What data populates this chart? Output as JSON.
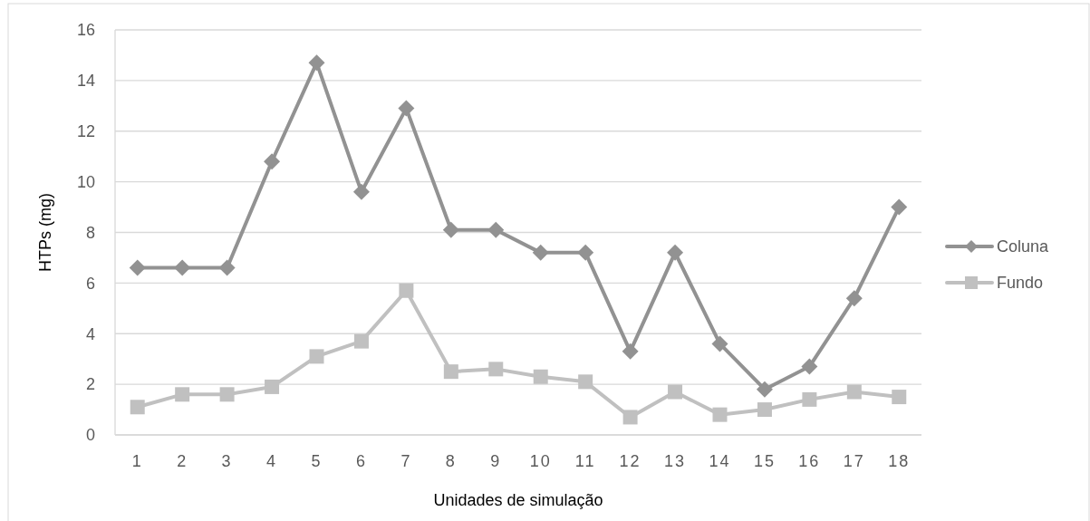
{
  "chart_data": {
    "type": "line",
    "xlabel": "Unidades de simulação",
    "ylabel": "HTPs (mg)",
    "categories": [
      "1",
      "2",
      "3",
      "4",
      "5",
      "6",
      "7",
      "8",
      "9",
      "10",
      "11",
      "12",
      "13",
      "14",
      "15",
      "16",
      "17",
      "18"
    ],
    "series": [
      {
        "name": "Coluna",
        "color": "#929292",
        "marker": "diamond",
        "values": [
          6.6,
          6.6,
          6.6,
          10.8,
          14.7,
          9.6,
          12.9,
          8.1,
          8.1,
          7.2,
          7.2,
          3.3,
          7.2,
          3.6,
          1.8,
          2.7,
          5.4,
          9.0
        ]
      },
      {
        "name": "Fundo",
        "color": "#c0c0c0",
        "marker": "square",
        "values": [
          1.1,
          1.6,
          1.6,
          1.9,
          3.1,
          3.7,
          5.7,
          2.5,
          2.6,
          2.3,
          2.1,
          0.7,
          1.7,
          0.8,
          1.0,
          1.4,
          1.7,
          1.5
        ]
      }
    ],
    "ylim": [
      0,
      16
    ],
    "yticks": [
      0,
      2,
      4,
      6,
      8,
      10,
      12,
      14,
      16
    ],
    "grid": "y",
    "legend": "right"
  }
}
